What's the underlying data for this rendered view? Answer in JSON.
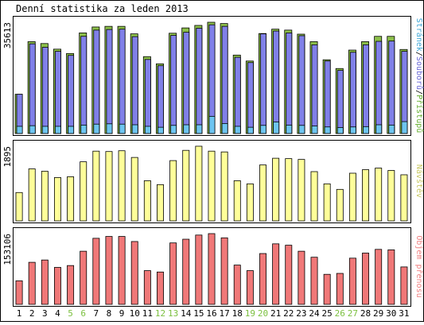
{
  "title": "Denní statistika za leden 2013",
  "colors": {
    "hits": "#8cbf4a",
    "files": "#8080e8",
    "pages": "#6ec4f0",
    "visits": "#ffff99",
    "volume": "#f07878",
    "weekend_day": "#7cc040",
    "weekday": "#000000",
    "legend_hits": "#66b030",
    "legend_files": "#6a6ad8",
    "legend_pages": "#40a8d8",
    "legend_visits": "#c8c860",
    "legend_volume": "#f08080"
  },
  "chart_data": [
    {
      "type": "bar",
      "panel": "hits",
      "categories": [
        "1",
        "2",
        "3",
        "4",
        "5",
        "6",
        "7",
        "8",
        "9",
        "10",
        "11",
        "12",
        "13",
        "14",
        "15",
        "16",
        "17",
        "18",
        "19",
        "20",
        "21",
        "22",
        "23",
        "24",
        "25",
        "26",
        "27",
        "28",
        "29",
        "30",
        "31"
      ],
      "weekend_days": [
        5,
        6,
        12,
        13,
        19,
        20,
        26,
        27
      ],
      "ymax_label": "35613",
      "ylim": [
        0,
        35613
      ],
      "legend": [
        {
          "label": "Stránek",
          "color_key": "legend_pages"
        },
        {
          "label": "Souborů",
          "color_key": "legend_files"
        },
        {
          "label": "Přístupů",
          "color_key": "legend_hits"
        }
      ],
      "separator": "/",
      "series": [
        {
          "name": "Přístupů",
          "values": [
            12550,
            29400,
            28800,
            27000,
            25600,
            32200,
            34100,
            34300,
            34300,
            31900,
            24600,
            22300,
            32100,
            33800,
            34600,
            35613,
            35200,
            25100,
            23200,
            32000,
            33400,
            33100,
            31800,
            29400,
            23600,
            20800,
            26700,
            29400,
            31100,
            31100,
            26900
          ]
        },
        {
          "name": "Souborů",
          "values": [
            12550,
            28700,
            27600,
            26300,
            25000,
            31100,
            33100,
            33300,
            33400,
            31000,
            23700,
            21700,
            31400,
            32400,
            33700,
            34800,
            34300,
            24400,
            22700,
            31900,
            32800,
            32200,
            31300,
            28400,
            23200,
            20200,
            26000,
            28400,
            29500,
            29600,
            26300
          ]
        },
        {
          "name": "Stránek",
          "values": [
            2300,
            2500,
            2300,
            2300,
            2300,
            2700,
            3000,
            3100,
            3000,
            2800,
            2300,
            2000,
            2600,
            2800,
            2800,
            5500,
            3200,
            2300,
            2000,
            2600,
            3700,
            2700,
            2600,
            2400,
            2100,
            1900,
            2100,
            2200,
            2800,
            2700,
            3800
          ]
        }
      ]
    },
    {
      "type": "bar",
      "panel": "visits",
      "categories": [
        "1",
        "2",
        "3",
        "4",
        "5",
        "6",
        "7",
        "8",
        "9",
        "10",
        "11",
        "12",
        "13",
        "14",
        "15",
        "16",
        "17",
        "18",
        "19",
        "20",
        "21",
        "22",
        "23",
        "24",
        "25",
        "26",
        "27",
        "28",
        "29",
        "30",
        "31"
      ],
      "ymax_label": "1895",
      "ylim": [
        0,
        1895
      ],
      "legend": [
        {
          "label": "Návštěv",
          "color_key": "legend_visits"
        }
      ],
      "series": [
        {
          "name": "Návštěv",
          "values": [
            720,
            1320,
            1260,
            1100,
            1120,
            1500,
            1770,
            1760,
            1780,
            1610,
            1020,
            920,
            1530,
            1790,
            1895,
            1770,
            1750,
            1020,
            940,
            1420,
            1590,
            1580,
            1560,
            1250,
            940,
            800,
            1210,
            1300,
            1340,
            1280,
            1170
          ]
        }
      ]
    },
    {
      "type": "bar",
      "panel": "volume",
      "categories": [
        "1",
        "2",
        "3",
        "4",
        "5",
        "6",
        "7",
        "8",
        "9",
        "10",
        "11",
        "12",
        "13",
        "14",
        "15",
        "16",
        "17",
        "18",
        "19",
        "20",
        "21",
        "22",
        "23",
        "24",
        "25",
        "26",
        "27",
        "28",
        "29",
        "30",
        "31"
      ],
      "ymax_label": "153106",
      "ylim": [
        0,
        153106
      ],
      "legend": [
        {
          "label": "Objem přenosu",
          "color_key": "legend_volume"
        }
      ],
      "series": [
        {
          "name": "Objem přenosu",
          "values": [
            51000,
            91000,
            96000,
            80000,
            84000,
            115000,
            143000,
            147000,
            147000,
            136000,
            73000,
            70000,
            133000,
            141000,
            150000,
            153106,
            144000,
            85000,
            73000,
            110000,
            131000,
            128000,
            115000,
            102000,
            65000,
            67000,
            100000,
            111000,
            119000,
            118000,
            81000
          ]
        }
      ]
    }
  ]
}
